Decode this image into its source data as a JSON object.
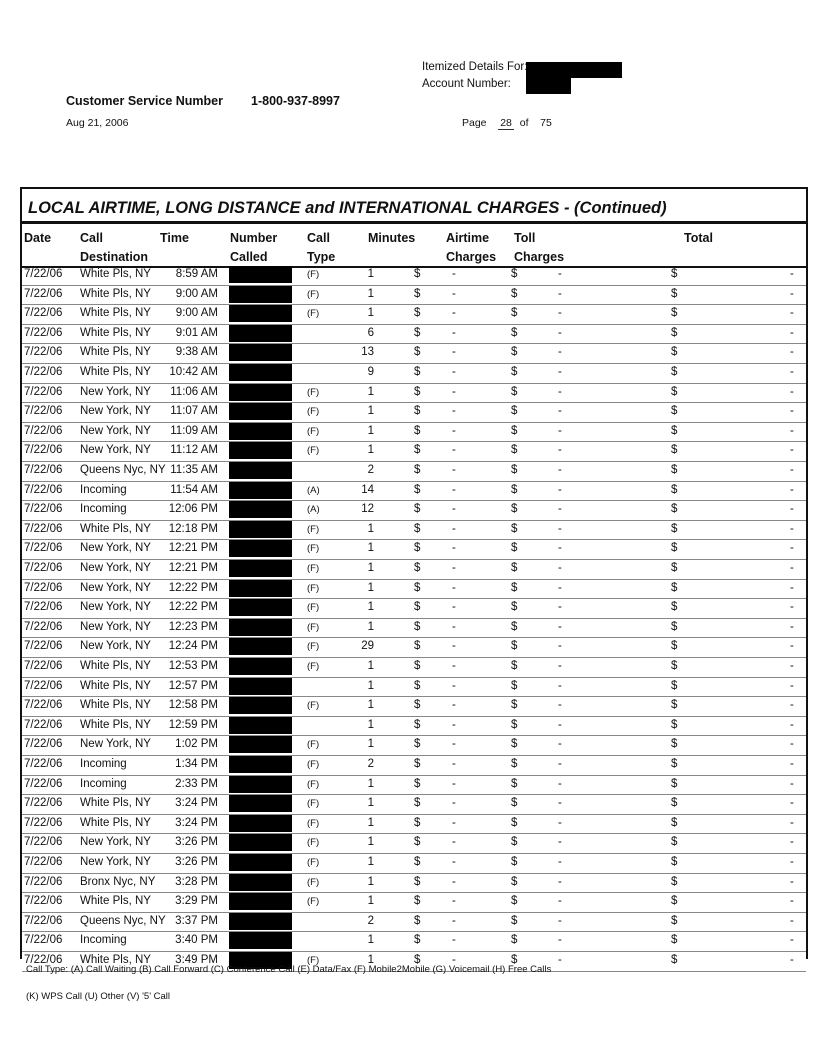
{
  "header": {
    "itemized_label": "Itemized Details For:",
    "account_label": "Account Number:",
    "cs_label": "Customer Service Number",
    "cs_phone": "1-800-937-8997",
    "date": "Aug 21, 2006",
    "page_label": "Page",
    "page_num": "28",
    "page_of": "of",
    "page_total": "75"
  },
  "table": {
    "title": "LOCAL AIRTIME, LONG DISTANCE and INTERNATIONAL CHARGES  - (Continued)",
    "columns": {
      "date": "Date",
      "dest1": "Call",
      "dest2": "Destination",
      "time": "Time",
      "num1": "Number",
      "num2": "Called",
      "type1": "Call",
      "type2": "Type",
      "minutes": "Minutes",
      "air1": "Airtime",
      "air2": "Charges",
      "toll1": "Toll",
      "toll2": "Charges",
      "total": "Total"
    },
    "currency": "$",
    "dash": "-",
    "rows": [
      [
        "7/22/06",
        "White Pls, NY",
        "8:59 AM",
        "(F)",
        "1"
      ],
      [
        "7/22/06",
        "White Pls, NY",
        "9:00 AM",
        "(F)",
        "1"
      ],
      [
        "7/22/06",
        "White Pls, NY",
        "9:00 AM",
        "(F)",
        "1"
      ],
      [
        "7/22/06",
        "White Pls, NY",
        "9:01 AM",
        "",
        "6"
      ],
      [
        "7/22/06",
        "White Pls, NY",
        "9:38 AM",
        "",
        "13"
      ],
      [
        "7/22/06",
        "White Pls, NY",
        "10:42 AM",
        "",
        "9"
      ],
      [
        "7/22/06",
        "New York, NY",
        "11:06 AM",
        "(F)",
        "1"
      ],
      [
        "7/22/06",
        "New York, NY",
        "11:07 AM",
        "(F)",
        "1"
      ],
      [
        "7/22/06",
        "New York, NY",
        "11:09 AM",
        "(F)",
        "1"
      ],
      [
        "7/22/06",
        "New York, NY",
        "11:12 AM",
        "(F)",
        "1"
      ],
      [
        "7/22/06",
        "Queens Nyc, NY",
        "11:35 AM",
        "",
        "2"
      ],
      [
        "7/22/06",
        "Incoming",
        "11:54 AM",
        "(A)",
        "14"
      ],
      [
        "7/22/06",
        "Incoming",
        "12:06 PM",
        "(A)",
        "12"
      ],
      [
        "7/22/06",
        "White Pls, NY",
        "12:18 PM",
        "(F)",
        "1"
      ],
      [
        "7/22/06",
        "New York, NY",
        "12:21 PM",
        "(F)",
        "1"
      ],
      [
        "7/22/06",
        "New York, NY",
        "12:21 PM",
        "(F)",
        "1"
      ],
      [
        "7/22/06",
        "New York, NY",
        "12:22 PM",
        "(F)",
        "1"
      ],
      [
        "7/22/06",
        "New York, NY",
        "12:22 PM",
        "(F)",
        "1"
      ],
      [
        "7/22/06",
        "New York, NY",
        "12:23 PM",
        "(F)",
        "1"
      ],
      [
        "7/22/06",
        "New York, NY",
        "12:24 PM",
        "(F)",
        "29"
      ],
      [
        "7/22/06",
        "White Pls, NY",
        "12:53 PM",
        "(F)",
        "1"
      ],
      [
        "7/22/06",
        "White Pls, NY",
        "12:57 PM",
        "",
        "1"
      ],
      [
        "7/22/06",
        "White Pls, NY",
        "12:58 PM",
        "(F)",
        "1"
      ],
      [
        "7/22/06",
        "White Pls, NY",
        "12:59 PM",
        "",
        "1"
      ],
      [
        "7/22/06",
        "New York, NY",
        "1:02 PM",
        "(F)",
        "1"
      ],
      [
        "7/22/06",
        "Incoming",
        "1:34 PM",
        "(F)",
        "2"
      ],
      [
        "7/22/06",
        "Incoming",
        "2:33 PM",
        "(F)",
        "1"
      ],
      [
        "7/22/06",
        "White Pls, NY",
        "3:24 PM",
        "(F)",
        "1"
      ],
      [
        "7/22/06",
        "White Pls, NY",
        "3:24 PM",
        "(F)",
        "1"
      ],
      [
        "7/22/06",
        "New York, NY",
        "3:26 PM",
        "(F)",
        "1"
      ],
      [
        "7/22/06",
        "New York, NY",
        "3:26 PM",
        "(F)",
        "1"
      ],
      [
        "7/22/06",
        "Bronx Nyc, NY",
        "3:28 PM",
        "(F)",
        "1"
      ],
      [
        "7/22/06",
        "White Pls, NY",
        "3:29 PM",
        "(F)",
        "1"
      ],
      [
        "7/22/06",
        "Queens Nyc, NY",
        "3:37 PM",
        "",
        "2"
      ],
      [
        "7/22/06",
        "Incoming",
        "3:40 PM",
        "",
        "1"
      ],
      [
        "7/22/06",
        "White Pls, NY",
        "3:49 PM",
        "(F)",
        "1"
      ]
    ]
  },
  "footer": {
    "legend1": "Call Type: (A) Call Waiting (B) Call Forward (C) Conference Call (E) Data/Fax (F) Mobile2Mobile (G) Voicemail (H) Free Calls",
    "legend2": "(K) WPS Call (U) Other (V) '5' Call"
  }
}
